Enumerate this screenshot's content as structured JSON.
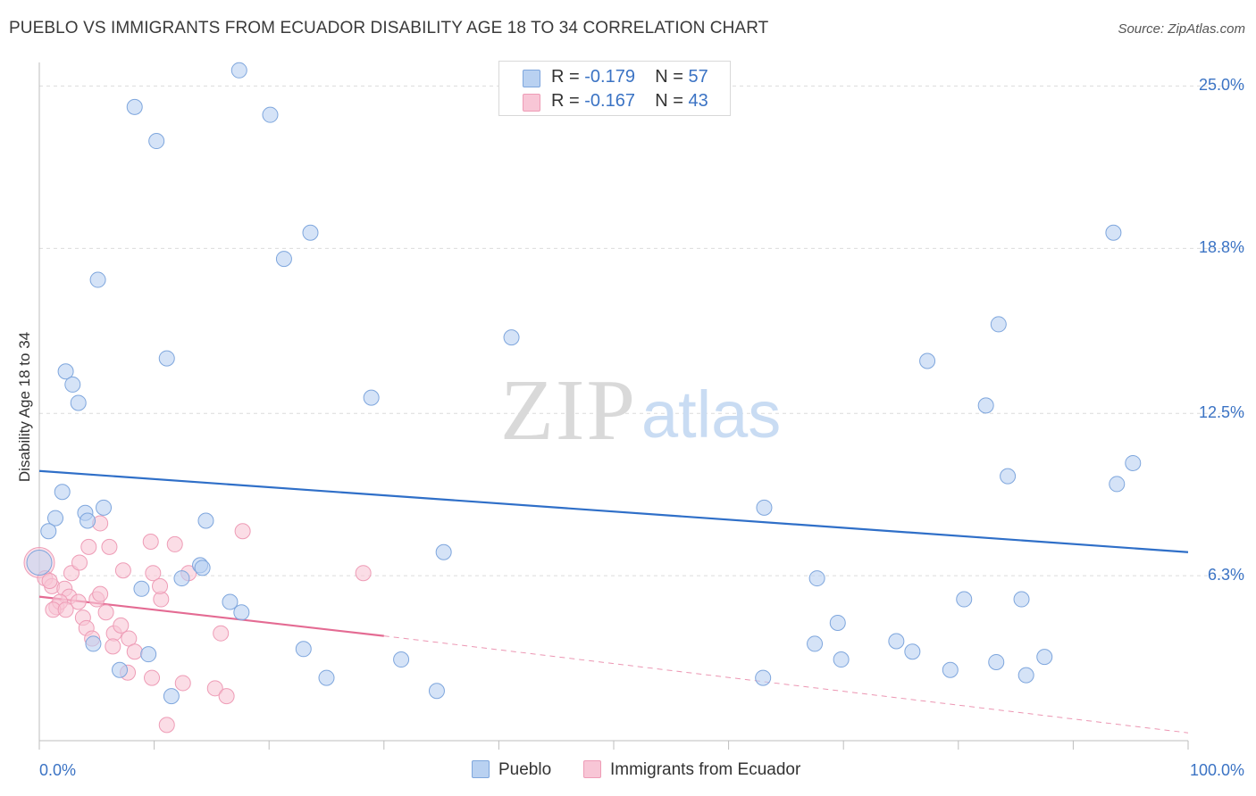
{
  "title": "PUEBLO VS IMMIGRANTS FROM ECUADOR DISABILITY AGE 18 TO 34 CORRELATION CHART",
  "source": "Source: ZipAtlas.com",
  "watermark": {
    "zip": "ZIP",
    "atlas": "atlas"
  },
  "colors": {
    "pueblo_fill": "#b9d1f1",
    "pueblo_stroke": "#7ea6dd",
    "pueblo_line": "#2f6fc8",
    "ecuador_fill": "#f8c6d6",
    "ecuador_stroke": "#ee9cb6",
    "ecuador_line": "#e46b93",
    "accent_text": "#3b73c4",
    "grid": "#dcdcdc"
  },
  "legend_top": [
    {
      "r_label": "R = ",
      "r_value": "-0.179",
      "n_label": "N = ",
      "n_value": "57"
    },
    {
      "r_label": "R = ",
      "r_value": "-0.167",
      "n_label": "N = ",
      "n_value": "43"
    }
  ],
  "chart_data": {
    "type": "scatter",
    "title": "PUEBLO VS IMMIGRANTS FROM ECUADOR DISABILITY AGE 18 TO 34 CORRELATION CHART",
    "xlabel": "",
    "ylabel": "Disability Age 18 to 34",
    "xlim": [
      0,
      100
    ],
    "ylim": [
      0,
      25.9
    ],
    "x_tick_labels": [
      "0.0%",
      "100.0%"
    ],
    "y_ticks": [
      6.3,
      12.5,
      18.8,
      25.0
    ],
    "y_tick_labels": [
      "6.3%",
      "12.5%",
      "18.8%",
      "25.0%"
    ],
    "grid": true,
    "legend_position": "bottom",
    "series": [
      {
        "name": "Pueblo",
        "points": [
          [
            17.4,
            25.6
          ],
          [
            8.3,
            24.2
          ],
          [
            20.1,
            23.9
          ],
          [
            10.2,
            22.9
          ],
          [
            23.6,
            19.4
          ],
          [
            21.3,
            18.4
          ],
          [
            5.1,
            17.6
          ],
          [
            11.1,
            14.6
          ],
          [
            2.3,
            14.1
          ],
          [
            2.9,
            13.6
          ],
          [
            3.4,
            12.9
          ],
          [
            2.0,
            9.5
          ],
          [
            1.4,
            8.5
          ],
          [
            4.0,
            8.7
          ],
          [
            4.2,
            8.4
          ],
          [
            5.6,
            8.9
          ],
          [
            0.8,
            8.0
          ],
          [
            14.5,
            8.4
          ],
          [
            14.0,
            6.7
          ],
          [
            14.2,
            6.6
          ],
          [
            12.4,
            6.2
          ],
          [
            8.9,
            5.8
          ],
          [
            16.6,
            5.3
          ],
          [
            17.6,
            4.9
          ],
          [
            4.7,
            3.7
          ],
          [
            9.5,
            3.3
          ],
          [
            7.0,
            2.7
          ],
          [
            11.5,
            1.7
          ],
          [
            23.0,
            3.5
          ],
          [
            25.0,
            2.4
          ],
          [
            35.2,
            7.2
          ],
          [
            41.1,
            15.4
          ],
          [
            28.9,
            13.1
          ],
          [
            34.6,
            1.9
          ],
          [
            31.5,
            3.1
          ],
          [
            63.1,
            8.9
          ],
          [
            63.0,
            2.4
          ],
          [
            67.7,
            6.2
          ],
          [
            67.5,
            3.7
          ],
          [
            69.5,
            4.5
          ],
          [
            69.8,
            3.1
          ],
          [
            74.6,
            3.8
          ],
          [
            76.0,
            3.4
          ],
          [
            77.3,
            14.5
          ],
          [
            79.3,
            2.7
          ],
          [
            80.5,
            5.4
          ],
          [
            82.4,
            12.8
          ],
          [
            83.5,
            15.9
          ],
          [
            83.3,
            3.0
          ],
          [
            84.3,
            10.1
          ],
          [
            85.5,
            5.4
          ],
          [
            85.9,
            2.5
          ],
          [
            87.5,
            3.2
          ],
          [
            93.5,
            19.4
          ],
          [
            93.8,
            9.8
          ],
          [
            95.2,
            10.6
          ],
          [
            0.0,
            6.8
          ]
        ]
      },
      {
        "name": "Immigrants from Ecuador",
        "points": [
          [
            0.0,
            6.8
          ],
          [
            0.5,
            6.2
          ],
          [
            1.1,
            5.9
          ],
          [
            0.9,
            6.1
          ],
          [
            2.2,
            5.8
          ],
          [
            2.6,
            5.5
          ],
          [
            2.8,
            6.4
          ],
          [
            3.5,
            6.8
          ],
          [
            3.4,
            5.3
          ],
          [
            1.5,
            5.1
          ],
          [
            1.8,
            5.3
          ],
          [
            3.8,
            4.7
          ],
          [
            4.1,
            4.3
          ],
          [
            5.3,
            8.3
          ],
          [
            4.3,
            7.4
          ],
          [
            6.1,
            7.4
          ],
          [
            5.0,
            5.4
          ],
          [
            5.3,
            5.6
          ],
          [
            5.8,
            4.9
          ],
          [
            7.3,
            6.5
          ],
          [
            6.5,
            4.1
          ],
          [
            6.4,
            3.6
          ],
          [
            7.1,
            4.4
          ],
          [
            7.8,
            3.9
          ],
          [
            8.3,
            3.4
          ],
          [
            7.7,
            2.6
          ],
          [
            9.7,
            7.6
          ],
          [
            9.9,
            6.4
          ],
          [
            9.8,
            2.4
          ],
          [
            10.6,
            5.4
          ],
          [
            10.5,
            5.9
          ],
          [
            11.1,
            0.6
          ],
          [
            11.8,
            7.5
          ],
          [
            12.5,
            2.2
          ],
          [
            13.0,
            6.4
          ],
          [
            15.8,
            4.1
          ],
          [
            15.3,
            2.0
          ],
          [
            16.3,
            1.7
          ],
          [
            17.7,
            8.0
          ],
          [
            28.2,
            6.4
          ],
          [
            4.6,
            3.9
          ],
          [
            1.2,
            5.0
          ],
          [
            2.3,
            5.0
          ]
        ]
      }
    ],
    "trendlines": [
      {
        "series": "Pueblo",
        "x0": 0,
        "y0": 10.3,
        "x1": 100,
        "y1": 7.2
      },
      {
        "series": "Immigrants from Ecuador",
        "x0": 0,
        "y0": 5.5,
        "x1": 30,
        "y1": 4.0,
        "dashed_to_x": 100,
        "dashed_to_y": 0.3
      }
    ]
  }
}
